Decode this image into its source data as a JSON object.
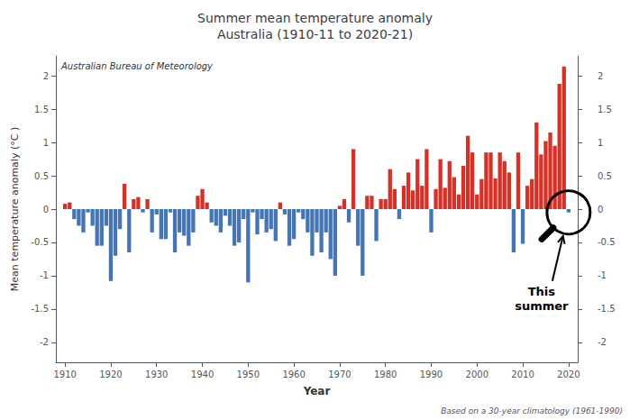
{
  "chart_data": {
    "type": "bar",
    "title": "Summer mean temperature anomaly\nAustralia (1910-11 to 2020-21)",
    "subtitle": "Australian Bureau of Meteorology",
    "xlabel": "Year",
    "ylabel": "Mean temperature anomaly (°C )",
    "annotations": [
      "Based on a 30-year climatology (1961-1990)",
      "This\nsummer"
    ],
    "x": [
      1910,
      1911,
      1912,
      1913,
      1914,
      1915,
      1916,
      1917,
      1918,
      1919,
      1920,
      1921,
      1922,
      1923,
      1924,
      1925,
      1926,
      1927,
      1928,
      1929,
      1930,
      1931,
      1932,
      1933,
      1934,
      1935,
      1936,
      1937,
      1938,
      1939,
      1940,
      1941,
      1942,
      1943,
      1944,
      1945,
      1946,
      1947,
      1948,
      1949,
      1950,
      1951,
      1952,
      1953,
      1954,
      1955,
      1956,
      1957,
      1958,
      1959,
      1960,
      1961,
      1962,
      1963,
      1964,
      1965,
      1966,
      1967,
      1968,
      1969,
      1970,
      1971,
      1972,
      1973,
      1974,
      1975,
      1976,
      1977,
      1978,
      1979,
      1980,
      1981,
      1982,
      1983,
      1984,
      1985,
      1986,
      1987,
      1988,
      1989,
      1990,
      1991,
      1992,
      1993,
      1994,
      1995,
      1996,
      1997,
      1998,
      1999,
      2000,
      2001,
      2002,
      2003,
      2004,
      2005,
      2006,
      2007,
      2008,
      2009,
      2010,
      2011,
      2012,
      2013,
      2014,
      2015,
      2016,
      2017,
      2018,
      2019,
      2020
    ],
    "values": [
      0.08,
      0.1,
      -0.15,
      -0.25,
      -0.35,
      -0.05,
      -0.25,
      -0.55,
      -0.55,
      -0.25,
      -1.08,
      -0.7,
      -0.3,
      0.38,
      -0.65,
      0.15,
      0.18,
      -0.05,
      0.15,
      -0.35,
      -0.08,
      -0.45,
      -0.45,
      -0.05,
      -0.65,
      -0.35,
      -0.4,
      -0.55,
      -0.35,
      0.2,
      0.3,
      0.1,
      -0.2,
      -0.25,
      -0.35,
      -0.1,
      -0.25,
      -0.55,
      -0.5,
      -0.15,
      -1.1,
      -0.05,
      -0.38,
      -0.15,
      -0.35,
      -0.3,
      -0.48,
      0.1,
      -0.08,
      -0.55,
      -0.45,
      -0.05,
      -0.15,
      -0.35,
      -0.7,
      -0.35,
      -0.65,
      -0.35,
      -0.75,
      -1.0,
      0.05,
      0.15,
      -0.2,
      0.9,
      -0.55,
      -1.0,
      0.2,
      0.2,
      -0.48,
      0.15,
      0.15,
      0.6,
      0.3,
      -0.15,
      0.35,
      0.55,
      0.28,
      0.75,
      0.35,
      0.9,
      -0.35,
      0.3,
      0.75,
      0.32,
      0.72,
      0.48,
      0.22,
      0.65,
      1.1,
      0.85,
      0.22,
      0.45,
      0.85,
      0.85,
      0.46,
      0.85,
      0.72,
      0.55,
      -0.65,
      0.85,
      -0.52,
      0.35,
      0.45,
      1.3,
      0.82,
      1.02,
      1.15,
      0.95,
      1.88,
      2.14,
      -0.05
    ],
    "colors": [
      "#d73027",
      "#d73027",
      "#4575b4",
      "#4575b4",
      "#4575b4",
      "#4575b4",
      "#4575b4",
      "#4575b4",
      "#4575b4",
      "#4575b4",
      "#4575b4",
      "#4575b4",
      "#4575b4",
      "#d73027",
      "#4575b4",
      "#d73027",
      "#d73027",
      "#4575b4",
      "#d73027",
      "#4575b4",
      "#4575b4",
      "#4575b4",
      "#4575b4",
      "#4575b4",
      "#4575b4",
      "#4575b4",
      "#4575b4",
      "#4575b4",
      "#4575b4",
      "#d73027",
      "#d73027",
      "#d73027",
      "#4575b4",
      "#4575b4",
      "#4575b4",
      "#4575b4",
      "#4575b4",
      "#4575b4",
      "#4575b4",
      "#4575b4",
      "#4575b4",
      "#4575b4",
      "#4575b4",
      "#4575b4",
      "#4575b4",
      "#4575b4",
      "#4575b4",
      "#d73027",
      "#4575b4",
      "#4575b4",
      "#4575b4",
      "#4575b4",
      "#4575b4",
      "#4575b4",
      "#4575b4",
      "#4575b4",
      "#4575b4",
      "#4575b4",
      "#4575b4",
      "#4575b4",
      "#d73027",
      "#d73027",
      "#4575b4",
      "#d73027",
      "#4575b4",
      "#4575b4",
      "#d73027",
      "#d73027",
      "#4575b4",
      "#d73027",
      "#d73027",
      "#d73027",
      "#d73027",
      "#4575b4",
      "#d73027",
      "#d73027",
      "#d73027",
      "#d73027",
      "#d73027",
      "#d73027",
      "#4575b4",
      "#d73027",
      "#d73027",
      "#d73027",
      "#d73027",
      "#d73027",
      "#d73027",
      "#d73027",
      "#d73027",
      "#d73027",
      "#d73027",
      "#d73027",
      "#d73027",
      "#d73027",
      "#d73027",
      "#d73027",
      "#d73027",
      "#d73027",
      "#4575b4",
      "#d73027",
      "#4575b4",
      "#d73027",
      "#d73027",
      "#d73027",
      "#d73027",
      "#d73027",
      "#d73027",
      "#d73027",
      "#d73027",
      "#d73027",
      "#4575b4"
    ],
    "xlim": [
      1908,
      2022
    ],
    "xticks": [
      1910,
      1920,
      1930,
      1940,
      1950,
      1960,
      1970,
      1980,
      1990,
      2000,
      2010,
      2020
    ],
    "ylim": [
      -2.3,
      2.3
    ],
    "yticks": [
      -2,
      -1.5,
      -1,
      -0.5,
      0,
      0.5,
      1,
      1.5,
      2
    ],
    "y2lim": [
      -2.3,
      2.3
    ],
    "y2ticks": [
      -2,
      -1.5,
      -1,
      -0.5,
      0,
      0.5,
      1,
      1.5,
      2
    ],
    "grid": false
  }
}
